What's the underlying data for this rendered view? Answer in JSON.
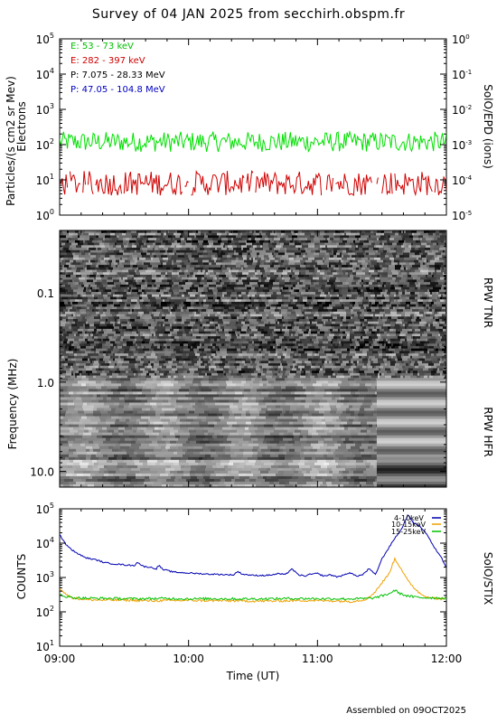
{
  "title": "Survey of 04 JAN 2025 from secchirh.obspm.fr",
  "footer": "Assembled on 09OCT2025",
  "colors": {
    "green": "#00e000",
    "red": "#d00000",
    "black": "#000000",
    "blue": "#0000c0",
    "stix_blue": "#0000b0",
    "stix_orange": "#f0a000",
    "stix_green": "#00c000"
  },
  "chart_data": [
    {
      "type": "line",
      "panel": "epd",
      "ylabel_line1": "Particles/(s cm2 sr Mev)",
      "ylabel_line2": "Electrons",
      "right_label": "SolO/EPD (ions)",
      "yscale": "log",
      "ylim": [
        1,
        100000
      ],
      "right_ylim": [
        1e-05,
        1
      ],
      "left_ticks": [
        {
          "base": "10",
          "exp": "0"
        },
        {
          "base": "10",
          "exp": "1"
        },
        {
          "base": "10",
          "exp": "2"
        },
        {
          "base": "10",
          "exp": "3"
        },
        {
          "base": "10",
          "exp": "4"
        },
        {
          "base": "10",
          "exp": "5"
        }
      ],
      "right_ticks": [
        {
          "base": "10",
          "exp": "-5"
        },
        {
          "base": "10",
          "exp": "-4"
        },
        {
          "base": "10",
          "exp": "-3"
        },
        {
          "base": "10",
          "exp": "-2"
        },
        {
          "base": "10",
          "exp": "-1"
        },
        {
          "base": "10",
          "exp": "0"
        }
      ],
      "legend": [
        {
          "label": "E: 53 - 73 keV",
          "color": "#00e000"
        },
        {
          "label": "E: 282 - 397 keV",
          "color": "#d00000"
        },
        {
          "label": "P: 7.075 - 28.33 MeV",
          "color": "#000000"
        },
        {
          "label": "P: 47.05 - 104.8 MeV",
          "color": "#0000c0"
        }
      ],
      "series": [
        {
          "name": "E: 53 - 73 keV",
          "color": "#00e000",
          "typical": 120,
          "spread": 0.18
        },
        {
          "name": "E: 282 - 397 keV",
          "color": "#d00000",
          "typical": 8,
          "spread": 0.25
        }
      ]
    },
    {
      "type": "heatmap",
      "panel": "rpw",
      "ylabel": "Frequency (MHz)",
      "yscale": "log",
      "ylim": [
        0.02,
        15
      ],
      "ticks": [
        "0.1",
        "1.0",
        "10.0"
      ],
      "tick_values": [
        0.1,
        1.0,
        10.0
      ],
      "bands": [
        {
          "name": "RPW TNR",
          "from": 0.02,
          "to": 0.9
        },
        {
          "name": "RPW HFR",
          "from": 0.9,
          "to": 15
        }
      ]
    },
    {
      "type": "line",
      "panel": "stix",
      "ylabel": "COUNTS",
      "right_label": "SolO/STIX",
      "xlabel": "Time (UT)",
      "yscale": "log",
      "ylim": [
        10,
        100000
      ],
      "ticks": [
        {
          "base": "10",
          "exp": "1"
        },
        {
          "base": "10",
          "exp": "2"
        },
        {
          "base": "10",
          "exp": "3"
        },
        {
          "base": "10",
          "exp": "4"
        },
        {
          "base": "10",
          "exp": "5"
        }
      ],
      "x_ticks": [
        "09:00",
        "10:00",
        "11:00",
        "12:00"
      ],
      "xlim": [
        "09:00",
        "12:00"
      ],
      "legend": [
        {
          "label": "4-10keV",
          "color": "#0000b0"
        },
        {
          "label": "10-15keV",
          "color": "#f0a000"
        },
        {
          "label": "15-25keV",
          "color": "#00c000"
        }
      ],
      "series": [
        {
          "name": "4-10keV",
          "color": "#0000b0",
          "x": [
            0,
            0.04,
            0.08,
            0.12,
            0.17,
            0.2,
            0.24,
            0.28,
            0.35,
            0.42,
            0.5,
            0.58,
            0.6,
            0.65,
            0.7,
            0.75,
            0.77,
            0.8,
            0.85,
            0.88,
            0.93,
            1.0,
            1.08,
            1.15,
            1.2,
            1.3,
            1.35,
            1.38,
            1.42,
            1.5,
            1.6,
            1.65,
            1.7,
            1.75,
            1.8,
            1.85,
            1.9,
            1.95,
            2.0,
            2.05,
            2.1,
            2.15,
            2.2,
            2.25,
            2.3,
            2.35,
            2.4,
            2.45,
            2.5,
            2.55,
            2.6,
            2.65,
            2.7,
            2.75,
            2.8,
            2.85,
            2.9,
            2.95,
            3.0
          ],
          "y": [
            18000,
            10000,
            7000,
            5500,
            4300,
            3800,
            3500,
            3300,
            2700,
            2500,
            2350,
            2200,
            2800,
            2100,
            2000,
            1800,
            2300,
            1700,
            1550,
            1450,
            1400,
            1350,
            1300,
            1250,
            1250,
            1200,
            1200,
            1500,
            1250,
            1150,
            1150,
            1200,
            1300,
            1200,
            1800,
            1200,
            1100,
            1250,
            1300,
            1100,
            1200,
            1050,
            1150,
            1400,
            1100,
            1200,
            1800,
            1200,
            3500,
            7000,
            14000,
            25000,
            65000,
            38000,
            30000,
            18000,
            8000,
            4500,
            2000
          ]
        },
        {
          "name": "10-15keV",
          "color": "#f0a000",
          "x": [
            0,
            0.03,
            0.06,
            0.1,
            0.15,
            0.2,
            0.3,
            0.5,
            0.7,
            1.0,
            1.3,
            1.6,
            1.9,
            2.1,
            2.2,
            2.25,
            2.3,
            2.35,
            2.4,
            2.45,
            2.5,
            2.55,
            2.6,
            2.65,
            2.7,
            2.75,
            2.8,
            2.85,
            2.9,
            2.95,
            3.0
          ],
          "y": [
            500,
            380,
            300,
            260,
            240,
            230,
            220,
            220,
            210,
            215,
            210,
            205,
            215,
            210,
            205,
            200,
            210,
            220,
            260,
            400,
            700,
            1200,
            3500,
            1800,
            800,
            500,
            330,
            280,
            250,
            240,
            235
          ]
        },
        {
          "name": "15-25keV",
          "color": "#00c000",
          "x": [
            0,
            0.05,
            0.1,
            0.2,
            0.4,
            0.6,
            0.8,
            1.0,
            1.2,
            1.4,
            1.6,
            1.8,
            2.0,
            2.2,
            2.3,
            2.4,
            2.45,
            2.5,
            2.55,
            2.6,
            2.65,
            2.7,
            2.75,
            2.8,
            2.9,
            3.0
          ],
          "y": [
            320,
            280,
            260,
            250,
            245,
            240,
            245,
            240,
            242,
            238,
            240,
            245,
            242,
            240,
            240,
            245,
            260,
            290,
            330,
            420,
            330,
            290,
            270,
            260,
            255,
            250
          ]
        }
      ]
    }
  ]
}
